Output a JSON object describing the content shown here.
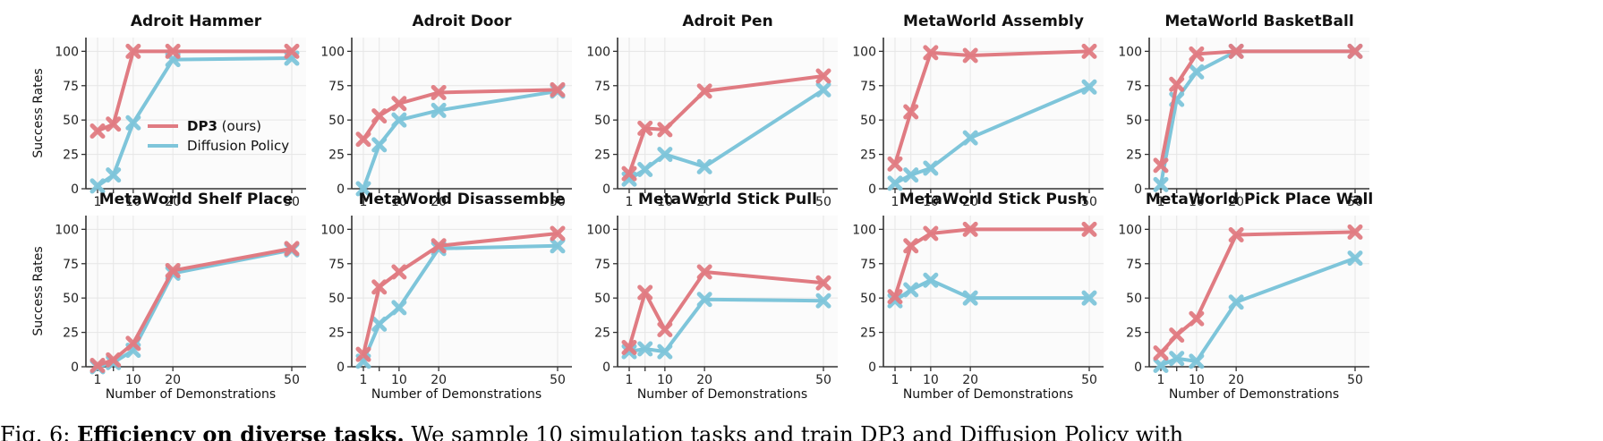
{
  "figure": {
    "x_ticks": [
      1,
      5,
      10,
      20,
      50
    ],
    "x_tick_labels": [
      "1",
      "",
      "10",
      "20",
      "50"
    ],
    "y_ticks": [
      0,
      25,
      50,
      75,
      100
    ],
    "ylabel": "Success Rates",
    "xlabel": "Number of Demonstrations",
    "legend": {
      "dp3_bold": "DP3",
      "dp3_rest": " (ours)",
      "diffusion": "Diffusion Policy"
    },
    "colors": {
      "dp3": "#e07b82",
      "diffusion": "#7ec5da",
      "grid": "#e6e6e6",
      "axis": "#333333"
    }
  },
  "chart_data": [
    {
      "type": "line",
      "title": "Adroit Hammer",
      "x": [
        1,
        5,
        10,
        20,
        50
      ],
      "ylim": [
        0,
        110
      ],
      "grid": true,
      "series": [
        {
          "name": "DP3 (ours)",
          "values": [
            42,
            47,
            100,
            100,
            100
          ]
        },
        {
          "name": "Diffusion Policy",
          "values": [
            2,
            10,
            48,
            94,
            95
          ]
        }
      ]
    },
    {
      "type": "line",
      "title": "Adroit Door",
      "x": [
        1,
        5,
        10,
        20,
        50
      ],
      "ylim": [
        0,
        110
      ],
      "grid": true,
      "series": [
        {
          "name": "DP3 (ours)",
          "values": [
            36,
            53,
            62,
            70,
            72
          ]
        },
        {
          "name": "Diffusion Policy",
          "values": [
            0,
            32,
            50,
            57,
            71
          ]
        }
      ]
    },
    {
      "type": "line",
      "title": "Adroit Pen",
      "x": [
        1,
        5,
        10,
        20,
        50
      ],
      "ylim": [
        0,
        110
      ],
      "grid": true,
      "series": [
        {
          "name": "DP3 (ours)",
          "values": [
            11,
            44,
            43,
            71,
            82
          ]
        },
        {
          "name": "Diffusion Policy",
          "values": [
            7,
            14,
            25,
            16,
            72
          ]
        }
      ]
    },
    {
      "type": "line",
      "title": "MetaWorld Assembly",
      "x": [
        1,
        5,
        10,
        20,
        50
      ],
      "ylim": [
        0,
        110
      ],
      "grid": true,
      "series": [
        {
          "name": "DP3 (ours)",
          "values": [
            18,
            56,
            99,
            97,
            100
          ]
        },
        {
          "name": "Diffusion Policy",
          "values": [
            4,
            10,
            15,
            37,
            74
          ]
        }
      ]
    },
    {
      "type": "line",
      "title": "MetaWorld BasketBall",
      "x": [
        1,
        5,
        10,
        20,
        50
      ],
      "ylim": [
        0,
        110
      ],
      "grid": true,
      "series": [
        {
          "name": "DP3 (ours)",
          "values": [
            17,
            76,
            98,
            100,
            100
          ]
        },
        {
          "name": "Diffusion Policy",
          "values": [
            3,
            65,
            85,
            100,
            100
          ]
        }
      ]
    },
    {
      "type": "line",
      "title": "MetaWorld Shelf Place",
      "x": [
        1,
        5,
        10,
        20,
        50
      ],
      "ylim": [
        0,
        110
      ],
      "grid": true,
      "series": [
        {
          "name": "DP3 (ours)",
          "values": [
            1,
            5,
            17,
            70,
            86
          ]
        },
        {
          "name": "Diffusion Policy",
          "values": [
            0,
            3,
            12,
            68,
            85
          ]
        }
      ]
    },
    {
      "type": "line",
      "title": "MetaWorld Disassemble",
      "x": [
        1,
        5,
        10,
        20,
        50
      ],
      "ylim": [
        0,
        110
      ],
      "grid": true,
      "series": [
        {
          "name": "DP3 (ours)",
          "values": [
            9,
            58,
            69,
            88,
            97
          ]
        },
        {
          "name": "Diffusion Policy",
          "values": [
            4,
            31,
            43,
            86,
            88
          ]
        }
      ]
    },
    {
      "type": "line",
      "title": "MetaWorld Stick Pull",
      "x": [
        1,
        5,
        10,
        20,
        50
      ],
      "ylim": [
        0,
        110
      ],
      "grid": true,
      "series": [
        {
          "name": "DP3 (ours)",
          "values": [
            14,
            54,
            27,
            69,
            61
          ]
        },
        {
          "name": "Diffusion Policy",
          "values": [
            11,
            13,
            11,
            49,
            48
          ]
        }
      ]
    },
    {
      "type": "line",
      "title": "MetaWorld Stick Push",
      "x": [
        1,
        5,
        10,
        20,
        50
      ],
      "ylim": [
        0,
        110
      ],
      "grid": true,
      "series": [
        {
          "name": "DP3 (ours)",
          "values": [
            51,
            88,
            97,
            100,
            100
          ]
        },
        {
          "name": "Diffusion Policy",
          "values": [
            48,
            56,
            63,
            50,
            50
          ]
        }
      ]
    },
    {
      "type": "line",
      "title": "MetaWorld Pick Place Wall",
      "x": [
        1,
        5,
        10,
        20,
        50
      ],
      "ylim": [
        0,
        110
      ],
      "grid": true,
      "series": [
        {
          "name": "DP3 (ours)",
          "values": [
            10,
            23,
            35,
            96,
            98
          ]
        },
        {
          "name": "Diffusion Policy",
          "values": [
            1,
            6,
            4,
            47,
            79
          ]
        }
      ]
    }
  ],
  "caption": {
    "prefix": "Fig. 6: ",
    "bold": "Efficiency on diverse tasks.",
    "rest": " We sample 10 simulation tasks and train DP3 and Diffusion Policy with"
  }
}
